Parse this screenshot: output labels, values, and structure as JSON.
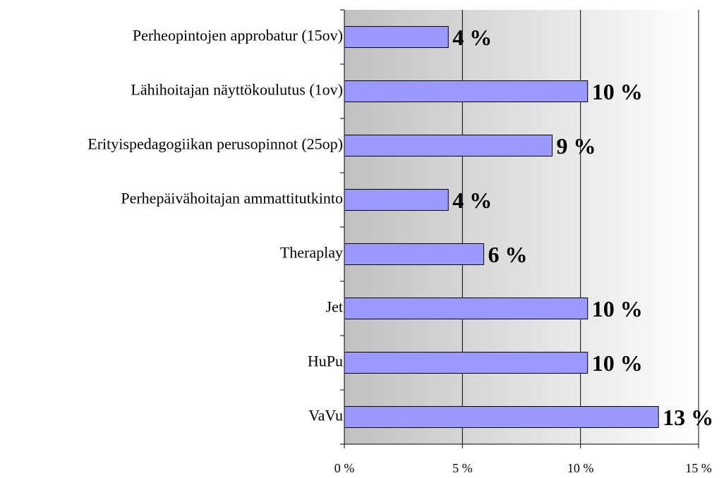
{
  "chart_data": {
    "type": "bar",
    "orientation": "horizontal",
    "categories": [
      "Perheopintojen approbatur (15ov)",
      "Lähihoitajan näyttökoulutus (1ov)",
      "Erityispedagogiikan perusopinnot (25op)",
      "Perhepäivähoitajan ammattitutkinto",
      "Theraplay",
      "Jet",
      "HuPu",
      "VaVu"
    ],
    "values": [
      4.4,
      10.3,
      8.8,
      4.4,
      5.9,
      10.3,
      10.3,
      13.3
    ],
    "value_labels": [
      "4 %",
      "10 %",
      "9 %",
      "4 %",
      "6 %",
      "10 %",
      "10 %",
      "13 %"
    ],
    "color": "#9999ff",
    "xlim": [
      0,
      15
    ],
    "xticks": [
      {
        "value": 0,
        "label": "0 %"
      },
      {
        "value": 5,
        "label": "5 %"
      },
      {
        "value": 10,
        "label": "10 %"
      },
      {
        "value": 15,
        "label": "15 %"
      }
    ],
    "grid": true
  }
}
